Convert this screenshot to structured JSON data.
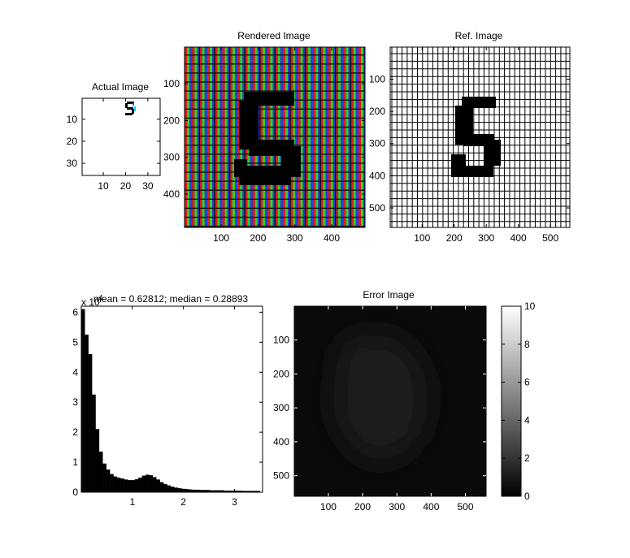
{
  "chart_data": [
    {
      "type": "image",
      "title": "Actual Image",
      "x_ticks": [
        "10",
        "20",
        "30"
      ],
      "y_ticks": [
        "10",
        "20",
        "30"
      ],
      "xlim": [
        0.5,
        35.5
      ],
      "ylim": [
        0.5,
        35.5
      ]
    },
    {
      "type": "image",
      "title": "Rendered Image",
      "x_ticks": [
        "100",
        "200",
        "300",
        "400"
      ],
      "y_ticks": [
        "100",
        "200",
        "300",
        "400"
      ],
      "xlim": [
        0.5,
        490.5
      ],
      "ylim": [
        0.5,
        490.5
      ]
    },
    {
      "type": "image",
      "title": "Ref. Image",
      "x_ticks": [
        "100",
        "200",
        "300",
        "400",
        "500"
      ],
      "y_ticks": [
        "100",
        "200",
        "300",
        "400",
        "500"
      ],
      "xlim": [
        0.5,
        560.5
      ],
      "ylim": [
        0.5,
        560.5
      ]
    },
    {
      "type": "bar",
      "title": "mean = 0.62812; median = 0.28893",
      "y_exponent_label": "x 10",
      "y_exponent": "4",
      "x_ticks": [
        "1",
        "2",
        "3"
      ],
      "y_ticks": [
        "0",
        "1",
        "2",
        "3",
        "4",
        "5",
        "6"
      ],
      "xlim": [
        0.0,
        3.55
      ],
      "ylim": [
        0,
        6.2
      ],
      "bin_centers": [
        0.035,
        0.105,
        0.175,
        0.245,
        0.315,
        0.385,
        0.455,
        0.525,
        0.595,
        0.665,
        0.735,
        0.805,
        0.875,
        0.945,
        1.015,
        1.085,
        1.155,
        1.225,
        1.295,
        1.365,
        1.435,
        1.505,
        1.575,
        1.645,
        1.715,
        1.785,
        1.855,
        1.925,
        1.995,
        2.065,
        2.135,
        2.205,
        2.275,
        2.345,
        2.415,
        2.485,
        2.555,
        2.625,
        2.695,
        2.765,
        2.835,
        2.905,
        2.975,
        3.045,
        3.115,
        3.185,
        3.255,
        3.325,
        3.395,
        3.465
      ],
      "values": [
        6.1,
        5.25,
        4.6,
        3.25,
        2.1,
        1.35,
        0.95,
        0.75,
        0.6,
        0.52,
        0.48,
        0.45,
        0.42,
        0.4,
        0.4,
        0.43,
        0.48,
        0.55,
        0.58,
        0.56,
        0.5,
        0.42,
        0.33,
        0.27,
        0.22,
        0.18,
        0.15,
        0.13,
        0.11,
        0.1,
        0.09,
        0.08,
        0.08,
        0.07,
        0.07,
        0.07,
        0.06,
        0.06,
        0.06,
        0.06,
        0.05,
        0.05,
        0.05,
        0.05,
        0.05,
        0.04,
        0.04,
        0.04,
        0.04,
        0.04
      ]
    },
    {
      "type": "heatmap",
      "title": "Error Image",
      "x_ticks": [
        "100",
        "200",
        "300",
        "400",
        "500"
      ],
      "y_ticks": [
        "100",
        "200",
        "300",
        "400",
        "500"
      ],
      "xlim": [
        0.5,
        560.5
      ],
      "ylim": [
        0.5,
        560.5
      ],
      "colorbar": {
        "range": [
          0,
          10
        ],
        "ticks": [
          "0",
          "2",
          "4",
          "6",
          "8",
          "10"
        ]
      }
    }
  ]
}
